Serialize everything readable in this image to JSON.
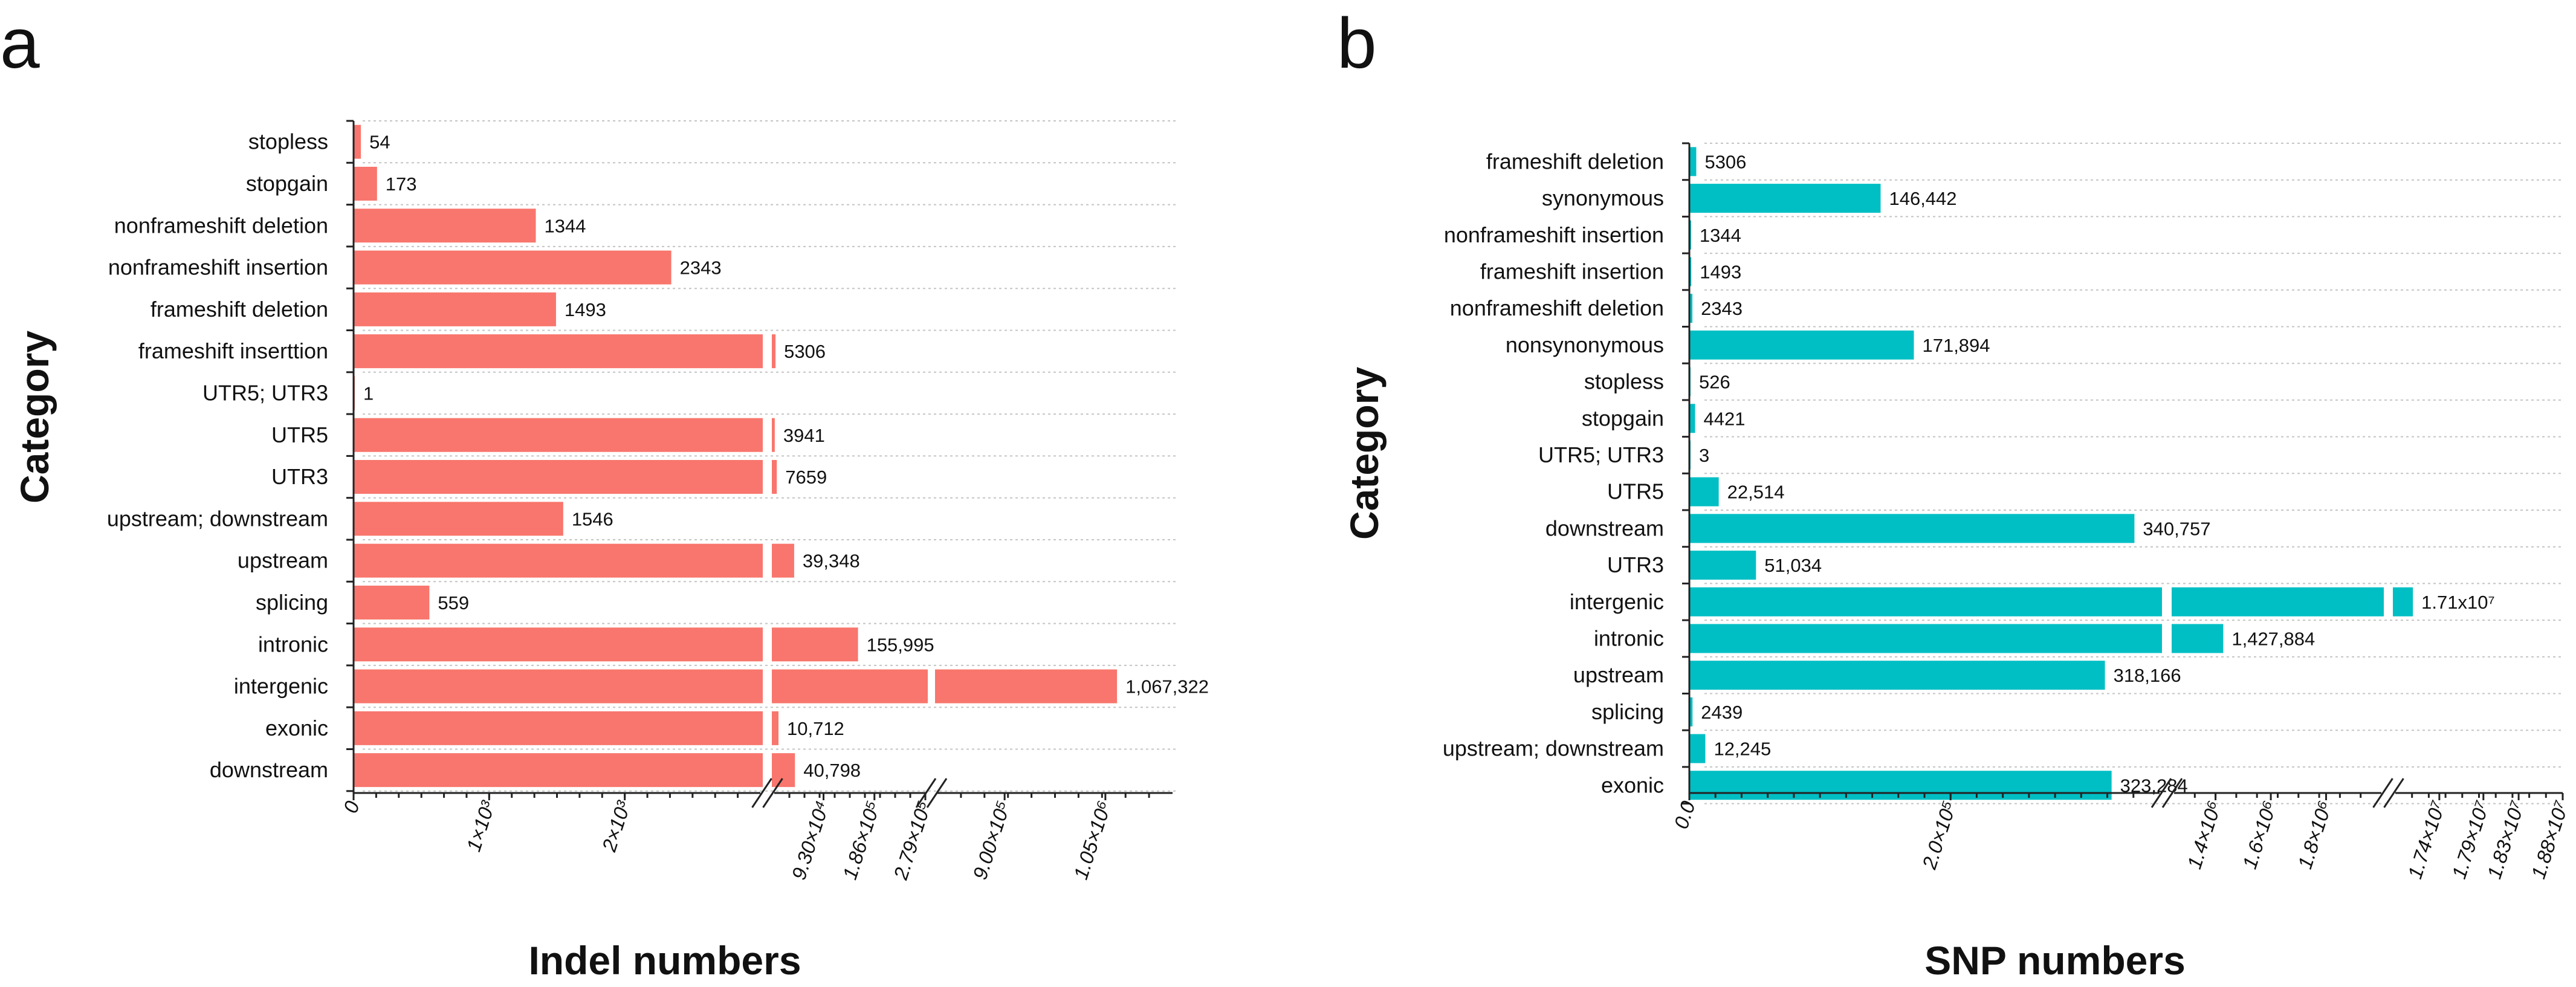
{
  "chart_data": [
    {
      "panel": "a",
      "type": "bar",
      "orientation": "horizontal",
      "xlabel": "Indel numbers",
      "ylabel": "Category",
      "color": "#f8766d",
      "broken_axis": true,
      "segments": [
        {
          "range": [
            0,
            3000
          ],
          "ticks": [
            {
              "value": 0,
              "label": "0"
            },
            {
              "value": 1000,
              "label": "1×10³"
            },
            {
              "value": 2000,
              "label": "2×10³"
            }
          ]
        },
        {
          "range": [
            3000,
            279000
          ],
          "ticks": [
            {
              "value": 93000,
              "label": "9.30×10⁴"
            },
            {
              "value": 186000,
              "label": "1.86×10⁵"
            },
            {
              "value": 279000,
              "label": "2.79×10⁵"
            }
          ]
        },
        {
          "range": [
            800000,
            1150000
          ],
          "ticks": [
            {
              "value": 900000,
              "label": "9.00×10⁵"
            },
            {
              "value": 1050000,
              "label": "1.05×10⁶"
            }
          ]
        }
      ],
      "categories": [
        "stopless",
        "stopgain",
        "nonframeshift deletion",
        "nonframeshift insertion",
        "frameshift deletion",
        "frameshift inserttion",
        "UTR5; UTR3",
        "UTR5",
        "UTR3",
        "upstream; downstream",
        "upstream",
        "splicing",
        "intronic",
        "intergenic",
        "exonic",
        "downstream"
      ],
      "values": [
        54,
        173,
        1344,
        2343,
        1493,
        5306,
        1,
        3941,
        7659,
        1546,
        39348,
        559,
        155995,
        1067322,
        10712,
        40798
      ],
      "value_labels": [
        "54",
        "173",
        "1344",
        "2343",
        "1493",
        "5306",
        "1",
        "3941",
        "7659",
        "1546",
        "39,348",
        "559",
        "155,995",
        "1,067,322",
        "10,712",
        "40,798"
      ]
    },
    {
      "panel": "b",
      "type": "bar",
      "orientation": "horizontal",
      "xlabel": "SNP numbers",
      "ylabel": "Category",
      "color": "#00bfc4",
      "broken_axis": true,
      "segments": [
        {
          "range": [
            0,
            360000
          ],
          "ticks": [
            {
              "value": 0,
              "label": "0.0"
            },
            {
              "value": 200000,
              "label": "2.0×10⁵"
            }
          ]
        },
        {
          "range": [
            1250000,
            2000000
          ],
          "ticks": [
            {
              "value": 1400000,
              "label": "1.4×10⁶"
            },
            {
              "value": 1600000,
              "label": "1.6×10⁶"
            },
            {
              "value": 1800000,
              "label": "1.8×10⁶"
            }
          ]
        },
        {
          "range": [
            16900000,
            18800000
          ],
          "ticks": [
            {
              "value": 17400000,
              "label": "1.74×10⁷"
            },
            {
              "value": 17900000,
              "label": "1.79×10⁷"
            },
            {
              "value": 18300000,
              "label": "1.83×10⁷"
            },
            {
              "value": 18800000,
              "label": "1.88×10⁷"
            }
          ]
        }
      ],
      "categories": [
        "frameshift deletion",
        "synonymous",
        "nonframeshift insertion",
        "frameshift insertion",
        "nonframeshift deletion",
        "nonsynonymous",
        "stopless",
        "stopgain",
        "UTR5; UTR3",
        "UTR5",
        "downstream",
        "UTR3",
        "intergenic",
        "intronic",
        "upstream",
        "splicing",
        "upstream; downstream",
        "exonic"
      ],
      "values": [
        5306,
        146442,
        1344,
        1493,
        2343,
        171894,
        526,
        4421,
        3,
        22514,
        340757,
        51034,
        17100000,
        1427884,
        318166,
        2439,
        12245,
        323284
      ],
      "value_labels": [
        "5306",
        "146,442",
        "1344",
        "1493",
        "2343",
        "171,894",
        "526",
        "4421",
        "3",
        "22,514",
        "340,757",
        "51,034",
        "1.71x10⁷",
        "1,427,884",
        "318,166",
        "2439",
        "12,245",
        "323,284"
      ]
    }
  ]
}
